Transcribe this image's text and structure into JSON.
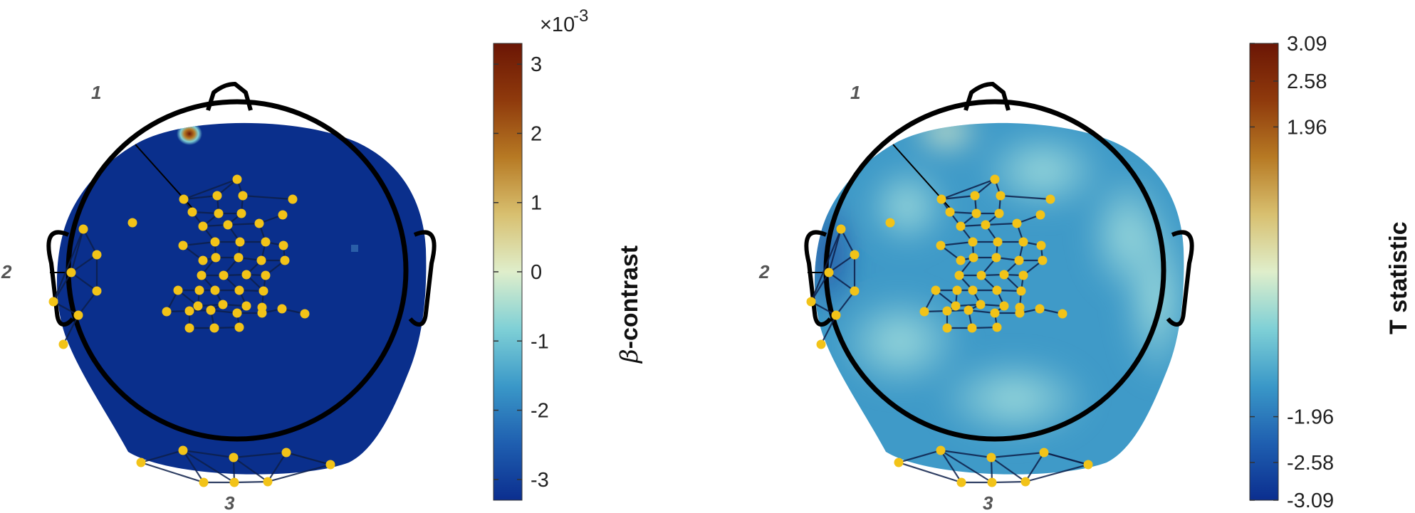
{
  "panels": [
    {
      "id": "left",
      "colorbar": {
        "label_symbol": "β",
        "label_text": "-contrast",
        "multiplier": "×10",
        "exponent": "-3",
        "min": -3.3,
        "max": 3.3,
        "ticks": [
          {
            "value": 3,
            "label": "3"
          },
          {
            "value": 2,
            "label": "2"
          },
          {
            "value": 1,
            "label": "1"
          },
          {
            "value": 0,
            "label": "0"
          },
          {
            "value": -1,
            "label": "-1"
          },
          {
            "value": -2,
            "label": "-2"
          },
          {
            "value": -3,
            "label": "-3"
          }
        ]
      },
      "regions": [
        "1",
        "2",
        "3"
      ]
    },
    {
      "id": "right",
      "colorbar": {
        "label_text": "T statistic",
        "min": -3.09,
        "max": 3.09,
        "ticks": [
          {
            "value": 3.09,
            "label": "3.09"
          },
          {
            "value": 2.58,
            "label": "2.58"
          },
          {
            "value": 1.96,
            "label": "1.96"
          },
          {
            "value": -1.96,
            "label": "-1.96"
          },
          {
            "value": -2.58,
            "label": "-2.58"
          },
          {
            "value": -3.09,
            "label": "-3.09"
          }
        ]
      },
      "regions": [
        "1",
        "2",
        "3"
      ]
    }
  ],
  "colors": {
    "colormap": [
      "#0b2e8f",
      "#1f5fb0",
      "#3a98c8",
      "#7fd0d6",
      "#dfeecb",
      "#d8c070",
      "#b77a24",
      "#8f3a0c",
      "#6b1605"
    ],
    "head_fill_left": "#0a2f8c",
    "electrode": "#f2c318",
    "outline": "#000000"
  }
}
